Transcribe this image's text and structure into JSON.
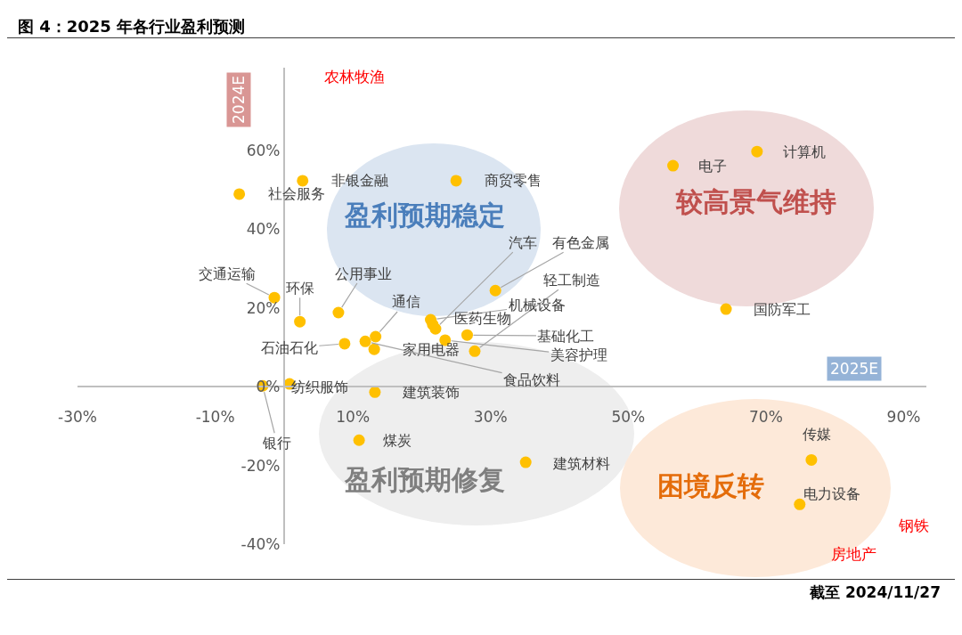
{
  "chart_data": {
    "type": "scatter",
    "title": "图 4：2025 年各行业盈利预测",
    "xlabel": "2025E",
    "ylabel": "2024E",
    "x": [
      68.7,
      56.5,
      64.2,
      76.6,
      74.9,
      35.1,
      10.9,
      13.2,
      0.8,
      -3.1,
      -6.5,
      2.7,
      25.0,
      -1.4,
      2.3,
      7.9,
      8.8,
      13.3,
      13.1,
      11.8,
      22.0,
      30.7,
      27.7,
      21.3,
      21.6,
      26.6,
      23.4
    ],
    "values": [
      59.7,
      56.1,
      19.7,
      -18.6,
      -29.9,
      -19.2,
      -13.6,
      -1.4,
      0.7,
      0.2,
      48.9,
      52.3,
      52.3,
      22.6,
      16.5,
      18.8,
      10.9,
      12.7,
      9.5,
      11.5,
      14.7,
      24.4,
      9.0,
      17.0,
      15.8,
      13.1,
      11.8
    ],
    "color": "#ffc000",
    "marker": "circle",
    "grid": false,
    "xlim": [
      -30,
      93.3
    ],
    "xticks": [
      {
        "value": -30,
        "label": "-30%"
      },
      {
        "value": -10,
        "label": "-10%"
      },
      {
        "value": 10,
        "label": "10%"
      },
      {
        "value": 30,
        "label": "30%"
      },
      {
        "value": 50,
        "label": "50%"
      },
      {
        "value": 70,
        "label": "70%"
      },
      {
        "value": 90,
        "label": "90%"
      }
    ],
    "ylim": [
      -40,
      81
    ],
    "yticks": [
      {
        "value": -40,
        "label": "-40%"
      },
      {
        "value": -20,
        "label": "-20%"
      },
      {
        "value": 0,
        "label": "0%"
      },
      {
        "value": 20,
        "label": "20%"
      },
      {
        "value": 40,
        "label": "40%"
      },
      {
        "value": 60,
        "label": "60%"
      }
    ],
    "annotations": [
      {
        "text": "计算机",
        "x": 68.7,
        "y": 59.7
      },
      {
        "text": "电子",
        "x": 56.5,
        "y": 56.1
      },
      {
        "text": "国防军工",
        "x": 64.2,
        "y": 19.7
      },
      {
        "text": "传媒",
        "x": 76.6,
        "y": -18.6
      },
      {
        "text": "电力设备",
        "x": 74.9,
        "y": -29.9
      },
      {
        "text": "建筑材料",
        "x": 35.1,
        "y": -19.2
      },
      {
        "text": "煤炭",
        "x": 10.9,
        "y": -13.6
      },
      {
        "text": "建筑装饰",
        "x": 13.2,
        "y": -1.4
      },
      {
        "text": "纺织服饰",
        "x": 0.8,
        "y": 0.7
      },
      {
        "text": "银行",
        "x": -3.1,
        "y": 0.2
      },
      {
        "text": "社会服务",
        "x": -6.5,
        "y": 48.9
      },
      {
        "text": "非银金融",
        "x": 2.7,
        "y": 52.3
      },
      {
        "text": "商贸零售",
        "x": 25.0,
        "y": 52.3
      },
      {
        "text": "交通运输",
        "x": -1.4,
        "y": 22.6
      },
      {
        "text": "环保",
        "x": 2.3,
        "y": 16.5
      },
      {
        "text": "公用事业",
        "x": 7.9,
        "y": 18.8
      },
      {
        "text": "石油石化",
        "x": 8.8,
        "y": 10.9
      },
      {
        "text": "通信",
        "x": 13.3,
        "y": 12.7
      },
      {
        "text": "家用电器",
        "x": 13.1,
        "y": 9.5
      },
      {
        "text": "食品饮料",
        "x": 11.8,
        "y": 11.5
      },
      {
        "text": "汽车",
        "x": 22.0,
        "y": 14.7
      },
      {
        "text": "有色金属",
        "x": 30.7,
        "y": 24.4
      },
      {
        "text": "轻工制造",
        "x": 27.7,
        "y": 9.0
      },
      {
        "text": "机械设备",
        "x": 21.3,
        "y": 17.0
      },
      {
        "text": "医药生物",
        "x": 21.6,
        "y": 15.8
      },
      {
        "text": "基础化工",
        "x": 26.6,
        "y": 13.1
      },
      {
        "text": "美容护理",
        "x": 23.4,
        "y": 11.8
      },
      "农林牧渔",
      "较高景气维持",
      "盈利预期稳定",
      "盈利预期修复",
      "困境反转",
      "钢铁",
      "房地产",
      "截至 2024/11/27"
    ]
  }
}
